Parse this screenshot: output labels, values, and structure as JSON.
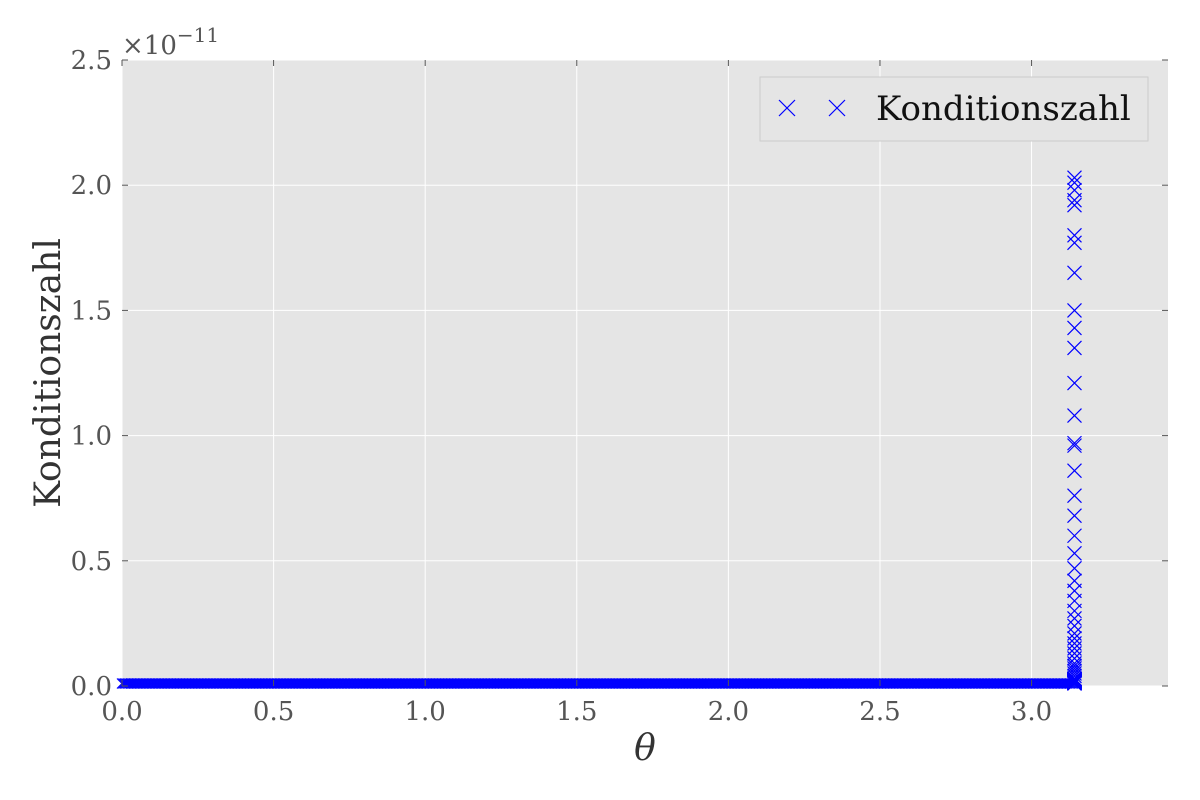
{
  "chart_data": {
    "type": "scatter",
    "xlabel": "θ",
    "ylabel": "Konditionszahl",
    "xlim": [
      0,
      3.45
    ],
    "ylim": [
      0,
      2.5e-11
    ],
    "x_ticks": [
      "0.0",
      "0.5",
      "1.0",
      "1.5",
      "2.0",
      "2.5",
      "3.0"
    ],
    "y_ticks": [
      "0.0",
      "0.5",
      "1.0",
      "1.5",
      "2.0",
      "2.5"
    ],
    "y_multiplier": {
      "base": "×10",
      "exponent": "−11"
    },
    "grid": true,
    "legend_position": "top-right",
    "marker": "x",
    "color": "#0000ff",
    "background": "#e5e5e5",
    "series": [
      {
        "name": "Konditionszahl",
        "x_range": [
          0,
          3.1416
        ],
        "baseline_value": 1e-13,
        "spike_x": 3.1416,
        "spike_values": [
          2.03e-11,
          2.01e-11,
          1.98e-11,
          1.94e-11,
          1.92e-11,
          1.8e-11,
          1.77e-11,
          1.65e-11,
          1.5e-11,
          1.43e-11,
          1.35e-11,
          1.21e-11,
          1.08e-11,
          9.7e-12,
          9.6e-12,
          8.6e-12,
          7.6e-12,
          6.8e-12,
          6e-12,
          5.3e-12,
          4.7e-12,
          4.2e-12,
          3.8e-12,
          3.4e-12,
          3e-12,
          2.7e-12,
          2.4e-12,
          2.1e-12,
          1.9e-12,
          1.7e-12,
          1.5e-12,
          1.3e-12,
          1.1e-12,
          9e-13,
          8e-13,
          7e-13,
          6e-13,
          5e-13,
          4e-13,
          3e-13,
          2e-13
        ]
      }
    ]
  }
}
